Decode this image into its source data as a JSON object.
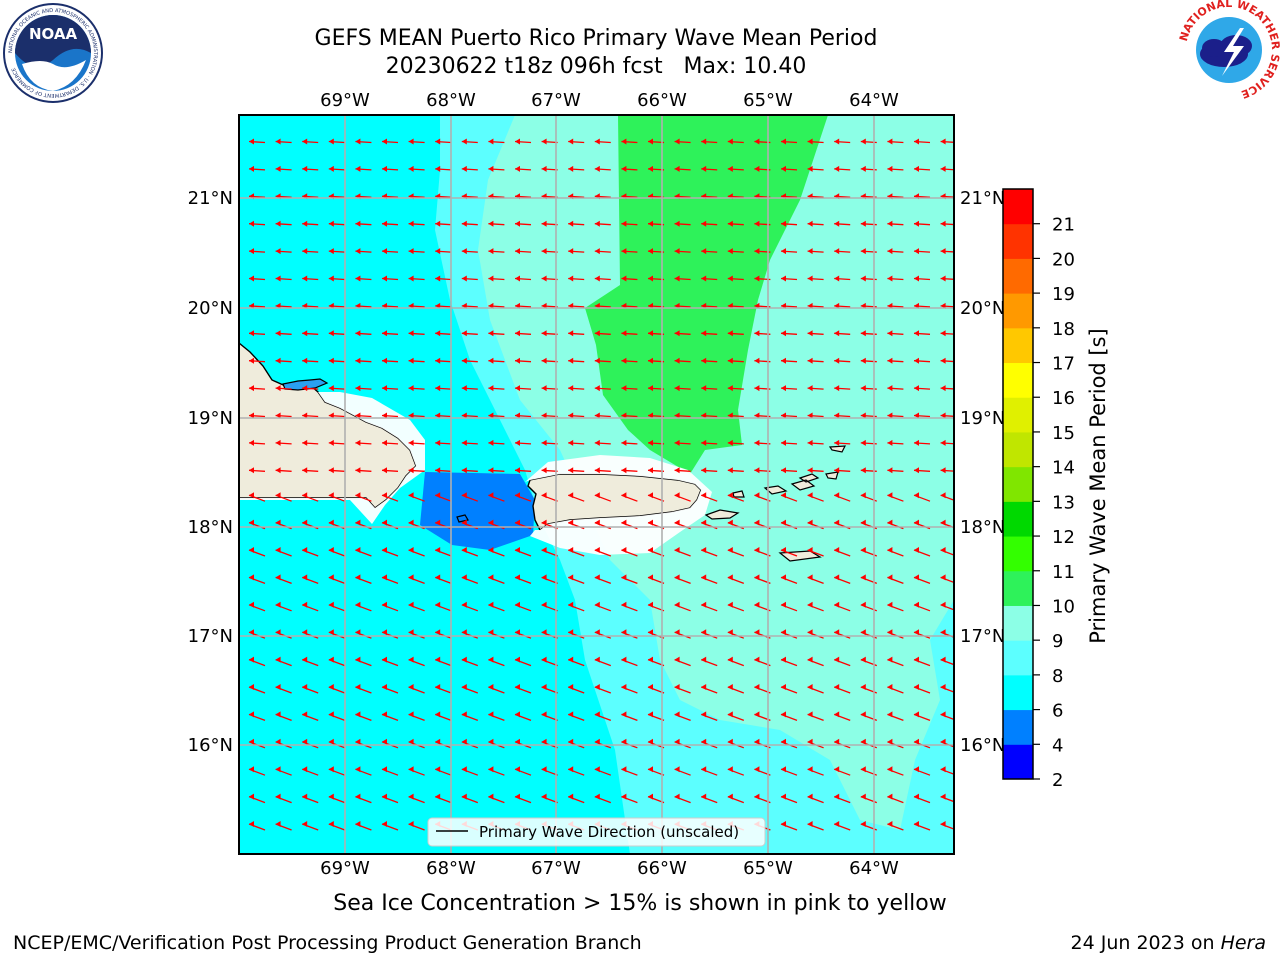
{
  "header": {
    "title_line1": "GEFS MEAN Puerto Rico Primary Wave Mean Period",
    "title_line2": "20230622 t18z 096h fcst   Max: 10.40"
  },
  "logos": {
    "left": {
      "name": "noaa-logo",
      "text": "NOAA",
      "ring_text": "NATIONAL OCEANIC AND ATMOSPHERIC ADMINISTRATION · U.S. DEPARTMENT OF COMMERCE"
    },
    "right": {
      "name": "nws-logo",
      "ring_text": "NATIONAL WEATHER SERVICE"
    }
  },
  "map": {
    "lon_labels": [
      "69°W",
      "68°W",
      "67°W",
      "66°W",
      "65°W",
      "64°W"
    ],
    "lat_labels": [
      "21°N",
      "20°N",
      "19°N",
      "18°N",
      "17°N",
      "16°N"
    ],
    "legend_label": "Primary Wave Direction (unscaled)",
    "arrow_color": "#ff0000",
    "land_color": "#efecdc",
    "regions": [
      "Hispaniola",
      "Puerto Rico",
      "Virgin Islands"
    ]
  },
  "colorbar": {
    "title": "Primary Wave Mean Period [s]",
    "ticks": [
      "2",
      "4",
      "6",
      "8",
      "9",
      "10",
      "11",
      "12",
      "13",
      "14",
      "15",
      "16",
      "17",
      "18",
      "19",
      "20",
      "21"
    ],
    "colors": [
      "#0000ff",
      "#0080ff",
      "#00ffff",
      "#5cffff",
      "#8cffe6",
      "#2ef25a",
      "#33ff00",
      "#00d900",
      "#80e600",
      "#c0e600",
      "#e0f000",
      "#ffff00",
      "#ffc800",
      "#ff9900",
      "#ff6a00",
      "#ff3300",
      "#ff0000"
    ]
  },
  "note": "Sea Ice Concentration > 15% is shown in pink to yellow",
  "footer": {
    "left": "NCEP/EMC/Verification Post Processing Product Generation Branch",
    "right_date": "24 Jun 2023 on ",
    "right_host": "Hera"
  }
}
